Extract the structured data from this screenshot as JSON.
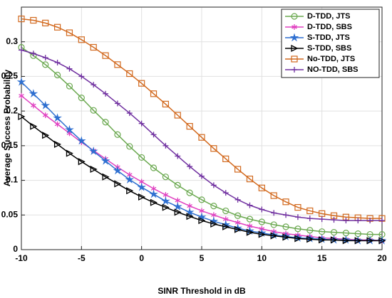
{
  "chart_data": {
    "type": "line",
    "xlabel": "SINR Threshold in dB",
    "ylabel": "Average Success Probability",
    "x": [
      -10,
      -9,
      -8,
      -7,
      -6,
      -5,
      -4,
      -3,
      -2,
      -1,
      0,
      1,
      2,
      3,
      4,
      5,
      6,
      7,
      8,
      9,
      10,
      11,
      12,
      13,
      14,
      15,
      16,
      17,
      18,
      19,
      20
    ],
    "xlim": [
      -10,
      20
    ],
    "xticks": [
      -10,
      -5,
      0,
      5,
      10,
      15,
      20
    ],
    "ylim": [
      0,
      0.35
    ],
    "yticks": [
      0,
      0.05,
      0.1,
      0.15,
      0.2,
      0.25,
      0.3
    ],
    "grid": true,
    "legend": "upper right",
    "series": [
      {
        "name": "D-TDD, JTS",
        "color": "#6aa84f",
        "marker": "circle",
        "values": [
          0.292,
          0.28,
          0.267,
          0.252,
          0.236,
          0.219,
          0.201,
          0.184,
          0.166,
          0.149,
          0.133,
          0.118,
          0.105,
          0.093,
          0.082,
          0.072,
          0.063,
          0.056,
          0.049,
          0.044,
          0.04,
          0.036,
          0.033,
          0.03,
          0.028,
          0.026,
          0.025,
          0.024,
          0.023,
          0.022,
          0.022
        ]
      },
      {
        "name": "D-TDD, SBS",
        "color": "#e040c0",
        "marker": "asterisk",
        "values": [
          0.222,
          0.208,
          0.194,
          0.181,
          0.168,
          0.155,
          0.143,
          0.131,
          0.119,
          0.108,
          0.098,
          0.088,
          0.079,
          0.071,
          0.063,
          0.056,
          0.05,
          0.044,
          0.039,
          0.034,
          0.03,
          0.026,
          0.023,
          0.021,
          0.019,
          0.017,
          0.016,
          0.015,
          0.014,
          0.014,
          0.013
        ]
      },
      {
        "name": "S-TDD, JTS",
        "color": "#2e6fd0",
        "marker": "star",
        "values": [
          0.242,
          0.225,
          0.208,
          0.19,
          0.173,
          0.157,
          0.142,
          0.128,
          0.114,
          0.101,
          0.09,
          0.08,
          0.07,
          0.062,
          0.054,
          0.047,
          0.041,
          0.036,
          0.031,
          0.027,
          0.024,
          0.021,
          0.019,
          0.017,
          0.016,
          0.015,
          0.014,
          0.014,
          0.013,
          0.013,
          0.013
        ]
      },
      {
        "name": "S-TDD, SBS",
        "color": "#000000",
        "marker": "triangle",
        "values": [
          0.192,
          0.178,
          0.165,
          0.152,
          0.139,
          0.127,
          0.116,
          0.105,
          0.095,
          0.085,
          0.076,
          0.068,
          0.061,
          0.054,
          0.048,
          0.042,
          0.037,
          0.033,
          0.029,
          0.025,
          0.022,
          0.02,
          0.018,
          0.016,
          0.015,
          0.014,
          0.014,
          0.013,
          0.013,
          0.013,
          0.013
        ]
      },
      {
        "name": "No-TDD, JTS",
        "color": "#d2691e",
        "marker": "square",
        "values": [
          0.333,
          0.331,
          0.327,
          0.321,
          0.313,
          0.303,
          0.292,
          0.28,
          0.267,
          0.254,
          0.24,
          0.225,
          0.21,
          0.194,
          0.178,
          0.162,
          0.146,
          0.131,
          0.116,
          0.102,
          0.089,
          0.078,
          0.069,
          0.061,
          0.056,
          0.052,
          0.049,
          0.047,
          0.046,
          0.045,
          0.045
        ]
      },
      {
        "name": "NO-TDD, SBS",
        "color": "#7030a0",
        "marker": "plus",
        "values": [
          0.288,
          0.283,
          0.277,
          0.27,
          0.261,
          0.25,
          0.238,
          0.225,
          0.211,
          0.197,
          0.182,
          0.166,
          0.15,
          0.135,
          0.12,
          0.106,
          0.093,
          0.082,
          0.072,
          0.064,
          0.058,
          0.053,
          0.05,
          0.047,
          0.045,
          0.044,
          0.043,
          0.042,
          0.042,
          0.042,
          0.042
        ]
      }
    ]
  }
}
